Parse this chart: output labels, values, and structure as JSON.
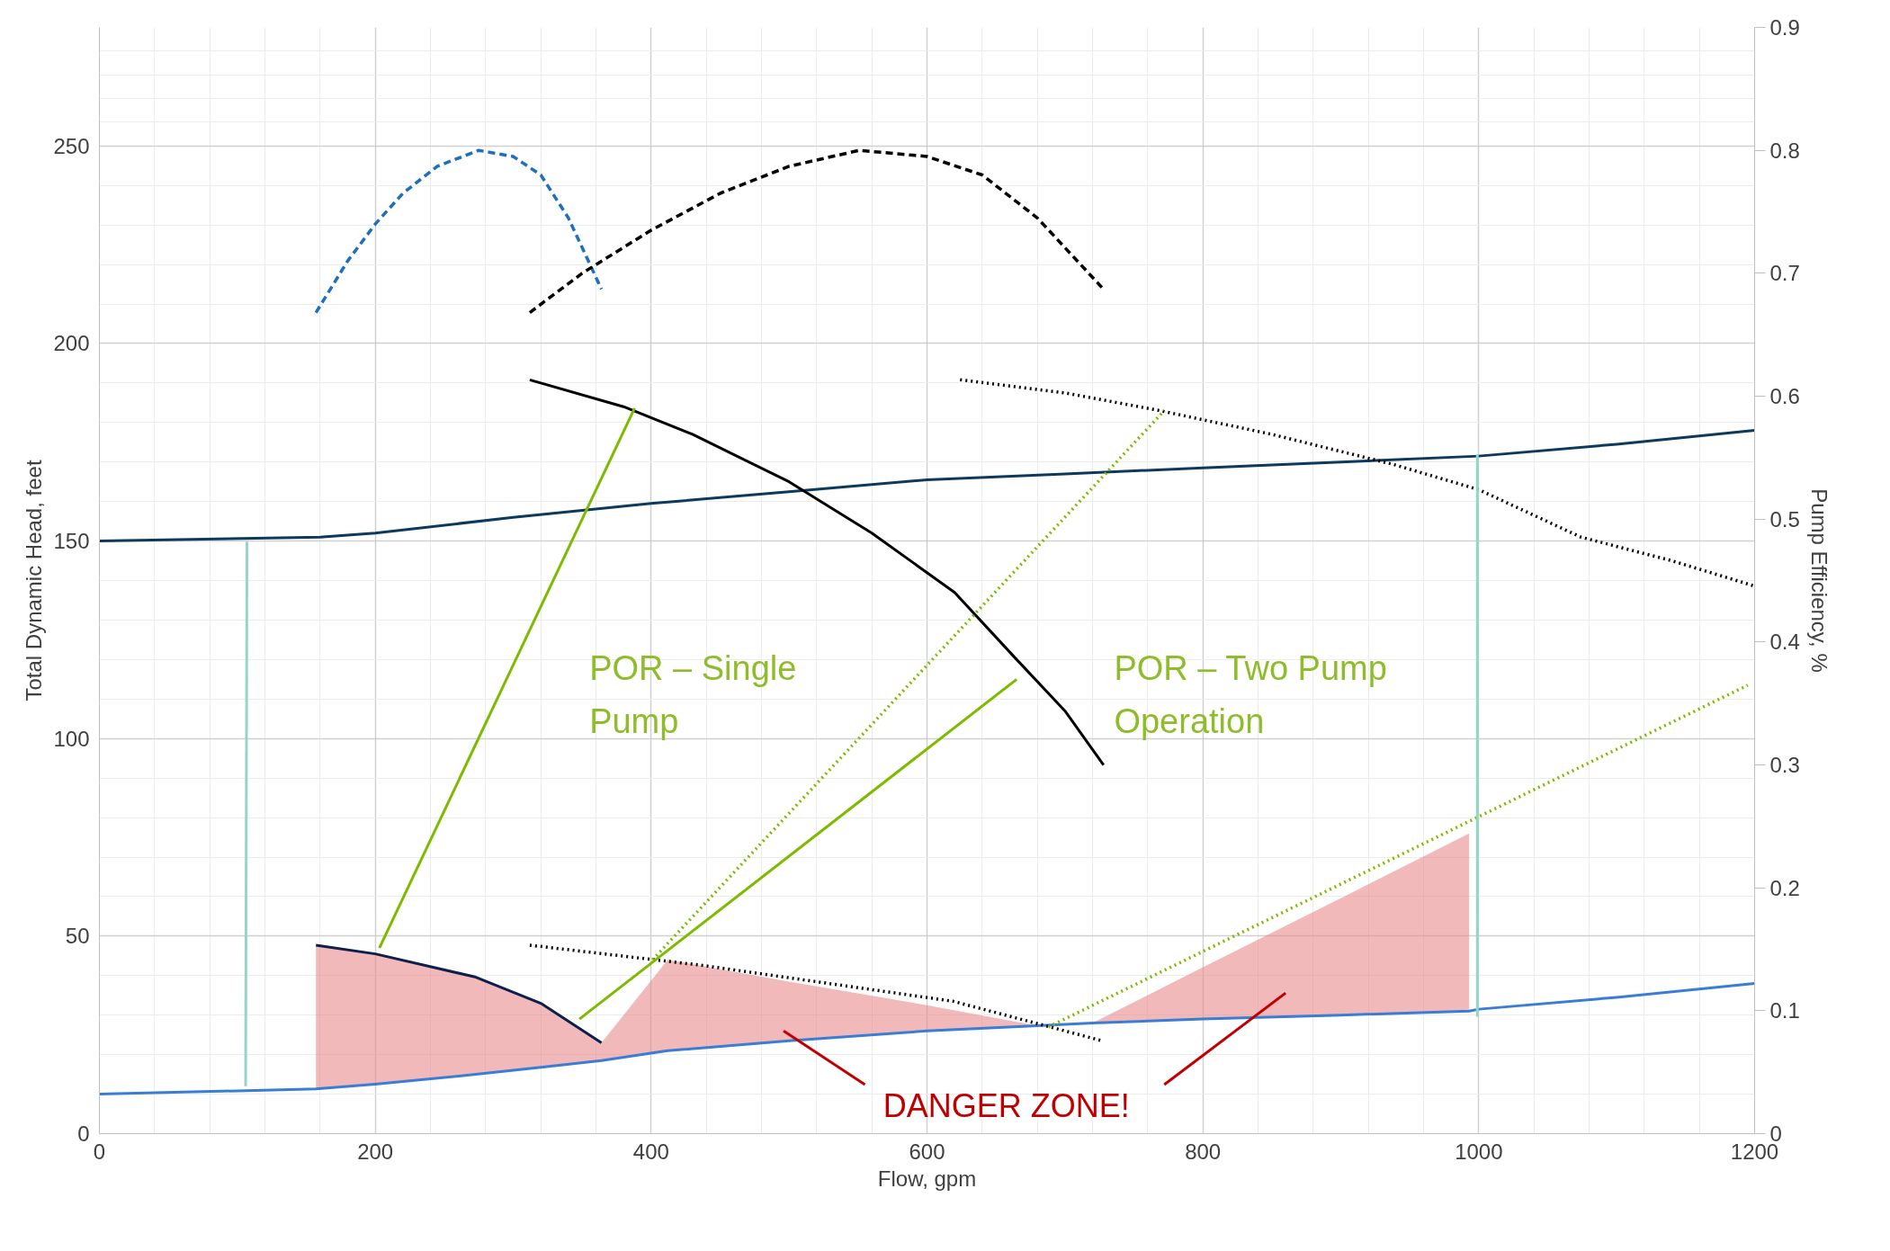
{
  "chart_data": {
    "type": "line",
    "xlabel": "Flow, gpm",
    "ylabel": "Total Dynamic Head, feet",
    "y2label": "Pump Efficiency, %",
    "xlim": [
      0,
      1200
    ],
    "xticks": [
      0,
      200,
      400,
      600,
      800,
      1000,
      1200
    ],
    "ylim": [
      0,
      280
    ],
    "yticks": [
      0,
      50,
      100,
      150,
      200,
      250
    ],
    "y2lim": [
      0,
      0.9
    ],
    "y2ticks": [
      0,
      0.1,
      0.2,
      0.3,
      0.4,
      0.5,
      0.6,
      0.7,
      0.8,
      0.9
    ],
    "grid": true,
    "line_style": "solid",
    "series": [
      {
        "color": "#3a7dd4",
        "x": [
          0,
          157,
          200,
          273,
          320,
          364,
          412,
          500,
          600,
          680,
          720,
          800,
          900,
          993,
          1000,
          1100,
          1200
        ],
        "values": [
          10,
          11.3,
          12.5,
          15,
          16.8,
          18.5,
          21,
          23.5,
          26,
          27.3,
          28,
          29,
          30,
          31,
          31.5,
          34.5,
          38
        ],
        "lower": [
          null,
          11.3,
          12.5,
          15,
          16.8,
          18.5,
          21,
          23.5,
          26,
          27.3,
          28,
          29,
          30,
          31,
          null,
          null,
          null
        ],
        "upper": [
          null,
          47.7,
          45.5,
          39.6,
          33,
          23,
          44,
          38.5,
          32.5,
          27.3,
          28,
          42.1,
          59.6,
          76,
          null,
          null,
          null
        ]
      },
      {
        "color": "#0d3a5c",
        "x": [
          0,
          160,
          200,
          300,
          400,
          500,
          600,
          700,
          800,
          900,
          1000,
          1100,
          1200
        ],
        "values": [
          150,
          151,
          152,
          156,
          159.5,
          162.5,
          165.5,
          167,
          168.5,
          170,
          171.5,
          174.5,
          178
        ]
      },
      {
        "color": "#000000",
        "x": [
          312,
          380,
          430,
          500,
          560,
          620,
          665,
          700,
          728
        ],
        "values": [
          190.8,
          184,
          177,
          165,
          152,
          137,
          120,
          107,
          93.3
        ]
      },
      {
        "color": "#000000",
        "line_style": "dotted",
        "x": [
          624,
          700,
          769,
          850,
          938,
          1000,
          1074,
          1140,
          1200
        ],
        "values": [
          190.8,
          187.5,
          183,
          177,
          169.4,
          163,
          151,
          145,
          138.6
        ]
      },
      {
        "color": "#1f6fbf",
        "line_style": "dashed",
        "axis": "y2",
        "x": [
          157,
          180,
          200,
          220,
          245,
          275,
          300,
          320,
          340,
          364
        ],
        "values": [
          0.668,
          0.71,
          0.74,
          0.765,
          0.787,
          0.8,
          0.795,
          0.78,
          0.745,
          0.687
        ]
      },
      {
        "color": "#000000",
        "line_style": "dashed",
        "axis": "y2",
        "x": [
          312,
          350,
          400,
          450,
          500,
          551,
          600,
          640,
          680,
          728
        ],
        "values": [
          0.668,
          0.7,
          0.735,
          0.765,
          0.787,
          0.8,
          0.795,
          0.78,
          0.745,
          0.687
        ]
      },
      {
        "color": "#000000",
        "line_style": "dotted",
        "x": [
          312,
          437,
          619,
          727
        ],
        "values": [
          47.7,
          42.6,
          33.5,
          23.5
        ]
      },
      {
        "color": "#0d1f4c",
        "x": [
          157,
          200,
          273,
          320,
          364
        ],
        "values": [
          47.7,
          45.5,
          39.6,
          33,
          23
        ]
      },
      {
        "color": "#7dba00",
        "x": [
          203,
          388
        ],
        "values": [
          47,
          183.6
        ]
      },
      {
        "color": "#7dba00",
        "x": [
          348,
          665
        ],
        "values": [
          29,
          115
        ]
      },
      {
        "color": "#7dba00",
        "line_style": "dotted",
        "x": [
          401,
          772
        ],
        "values": [
          44,
          183
        ]
      },
      {
        "color": "#7dba00",
        "line_style": "dotted",
        "x": [
          688,
          1195
        ],
        "values": [
          27,
          113.5
        ]
      },
      {
        "color": "#95d5c8",
        "x": [
          107,
          106
        ],
        "values": [
          149.8,
          12
        ]
      },
      {
        "color": "#95d5c8",
        "x": [
          999,
          999
        ],
        "values": [
          172,
          29.6
        ]
      },
      {
        "color": "#c00000",
        "x": [
          555,
          496
        ],
        "values": [
          12.4,
          26
        ]
      },
      {
        "color": "#c00000",
        "x": [
          772,
          860
        ],
        "values": [
          12.4,
          35.6
        ]
      }
    ],
    "annotations": [
      "POR – Single\nPump",
      "POR – Two Pump\nOperation",
      "DANGER ZONE!"
    ]
  }
}
